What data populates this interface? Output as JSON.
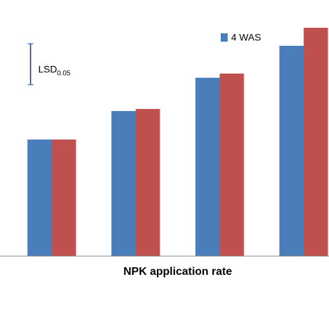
{
  "chart_data": {
    "type": "bar",
    "xlabel": "NPK application rate",
    "categories": [
      null,
      null,
      null,
      null
    ],
    "series": [
      {
        "name": "4 WAS",
        "color": "#4a7ebb",
        "values": [
          168,
          209,
          257,
          303
        ]
      },
      {
        "color": "#c0504d",
        "values": [
          168,
          212,
          263,
          329
        ]
      }
    ],
    "ylim": [
      0,
      369
    ],
    "lsd": {
      "label": "LSD",
      "subscript": "0.05",
      "value": 59
    }
  }
}
